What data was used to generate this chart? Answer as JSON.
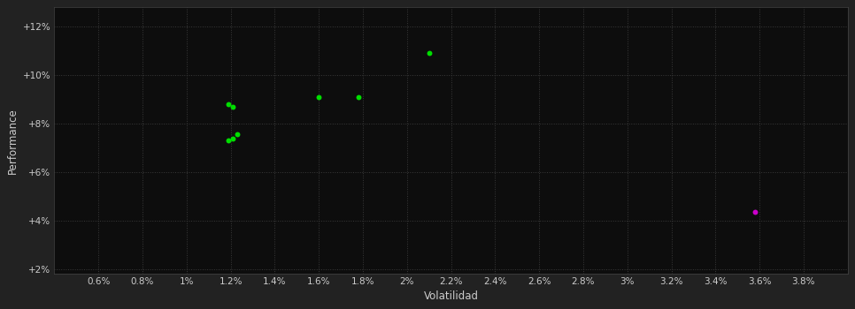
{
  "background_color": "#222222",
  "plot_bg_color": "#0d0d0d",
  "grid_color": "#3a3a3a",
  "grid_linestyle": ":",
  "title": "",
  "xlabel": "Volatilidad",
  "ylabel": "Performance",
  "xlim": [
    0.004,
    0.04
  ],
  "ylim": [
    0.018,
    0.128
  ],
  "xticks": [
    0.006,
    0.008,
    0.01,
    0.012,
    0.014,
    0.016,
    0.018,
    0.02,
    0.022,
    0.024,
    0.026,
    0.028,
    0.03,
    0.032,
    0.034,
    0.036,
    0.038
  ],
  "xtick_labels": [
    "0.6%",
    "0.8%",
    "1%",
    "1.2%",
    "1.4%",
    "1.6%",
    "1.8%",
    "2%",
    "2.2%",
    "2.4%",
    "2.6%",
    "2.8%",
    "3%",
    "3.2%",
    "3.4%",
    "3.6%",
    "3.8%"
  ],
  "yticks": [
    0.02,
    0.04,
    0.06,
    0.08,
    0.1,
    0.12
  ],
  "ytick_labels": [
    "+2%",
    "+4%",
    "+6%",
    "+8%",
    "+10%",
    "+12%"
  ],
  "green_points": [
    [
      0.0119,
      0.088
    ],
    [
      0.0121,
      0.087
    ],
    [
      0.0119,
      0.073
    ],
    [
      0.0121,
      0.074
    ],
    [
      0.0123,
      0.0755
    ],
    [
      0.016,
      0.091
    ],
    [
      0.0178,
      0.091
    ],
    [
      0.021,
      0.109
    ]
  ],
  "magenta_points": [
    [
      0.0358,
      0.0435
    ]
  ],
  "green_color": "#00dd00",
  "magenta_color": "#cc00cc",
  "marker_size": 18,
  "font_color": "#cccccc",
  "tick_fontsize": 7.5,
  "label_fontsize": 8.5
}
